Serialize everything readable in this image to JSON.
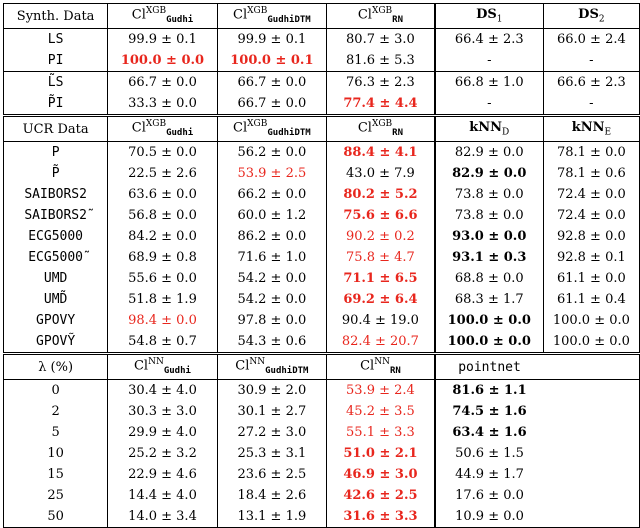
{
  "sections": [
    {
      "header": [
        "Synth. Data",
        "Cl^XGB_Gudhi",
        "Cl^XGB_GudhiDTM",
        "Cl^XGB_RN",
        "DS_1",
        "DS_2"
      ],
      "header_head": [
        "Synth. Data",
        "Cl",
        "Cl",
        "Cl",
        "DS",
        "DS"
      ],
      "header_sup": [
        "",
        "XGB",
        "XGB",
        "XGB",
        "",
        ""
      ],
      "header_sub": [
        "",
        "Gudhi",
        "GudhiDTM",
        "RN",
        "1",
        "2"
      ],
      "rows": [
        [
          "LS",
          "99.9 ± 0.1",
          "99.9 ± 0.1",
          "80.7 ± 3.0",
          "66.4 ± 2.3",
          "66.0 ± 2.4"
        ],
        [
          "PI",
          "100.0 ± 0.0",
          "100.0 ± 0.1",
          "81.6 ± 5.3",
          "-",
          "-"
        ],
        [
          "L̃S",
          "66.7 ± 0.0",
          "66.7 ± 0.0",
          "76.3 ± 2.3",
          "66.8 ± 1.0",
          "66.6 ± 2.3"
        ],
        [
          "P̃I",
          "33.3 ± 0.0",
          "66.7 ± 0.0",
          "77.4 ± 4.4",
          "-",
          "-"
        ]
      ]
    },
    {
      "header": [
        "UCR Data",
        "Cl^XGB_Gudhi",
        "Cl^XGB_GudhiDTM",
        "Cl^XGB_RN",
        "kNN_D",
        "kNN_E"
      ],
      "header_head": [
        "UCR Data",
        "Cl",
        "Cl",
        "Cl",
        "kNN",
        "kNN"
      ],
      "header_sup": [
        "",
        "XGB",
        "XGB",
        "XGB",
        "",
        ""
      ],
      "header_sub": [
        "",
        "Gudhi",
        "GudhiDTM",
        "RN",
        "D",
        "E"
      ],
      "rows": [
        [
          "P",
          "70.5 ± 0.0",
          "56.2 ± 0.0",
          "88.4 ± 4.1",
          "82.9 ± 0.0",
          "78.1 ± 0.0"
        ],
        [
          "P̃",
          "22.5 ± 2.6",
          "53.9 ± 2.5",
          "43.0 ± 7.9",
          "82.9 ± 0.0",
          "78.1 ± 0.6"
        ],
        [
          "SAIBORS2",
          "63.6 ± 0.0",
          "66.2 ± 0.0",
          "80.2 ± 5.2",
          "73.8 ± 0.0",
          "72.4 ± 0.0"
        ],
        [
          "SAIBORS2̃",
          "56.8 ± 0.0",
          "60.0 ± 1.2",
          "75.6 ± 6.6",
          "73.8 ± 0.0",
          "72.4 ± 0.0"
        ],
        [
          "ECG5000",
          "84.2 ± 0.0",
          "86.2 ± 0.0",
          "90.2 ± 0.2",
          "93.0 ± 0.0",
          "92.8 ± 0.0"
        ],
        [
          "ECG5000̃",
          "68.9 ± 0.8",
          "71.6 ± 1.0",
          "75.8 ± 4.7",
          "93.1 ± 0.3",
          "92.8 ± 0.1"
        ],
        [
          "UMD",
          "55.6 ± 0.0",
          "54.2 ± 0.0",
          "71.1 ± 6.5",
          "68.8 ± 0.0",
          "61.1 ± 0.0"
        ],
        [
          "UMD̃",
          "51.8 ± 1.9",
          "54.2 ± 0.0",
          "69.2 ± 6.4",
          "68.3 ± 1.7",
          "61.1 ± 0.4"
        ],
        [
          "GPOVY",
          "98.4 ± 0.0",
          "97.8 ± 0.0",
          "90.4 ± 19.0",
          "100.0 ± 0.0",
          "100.0 ± 0.0"
        ],
        [
          "GPOVỸ",
          "54.8 ± 0.7",
          "54.3 ± 0.6",
          "82.4 ± 20.7",
          "100.0 ± 0.0",
          "100.0 ± 0.0"
        ]
      ]
    },
    {
      "header": [
        "λ (%)",
        "Cl^NN_Gudhi",
        "Cl^NN_GudhiDTM",
        "Cl^NN_RN",
        "pointnet",
        ""
      ],
      "header_head": [
        "λ (%)",
        "Cl",
        "Cl",
        "Cl",
        "pointnet",
        ""
      ],
      "header_sup": [
        "",
        "NN",
        "NN",
        "NN",
        "",
        ""
      ],
      "header_sub": [
        "",
        "Gudhi",
        "GudhiDTM",
        "RN",
        "",
        ""
      ],
      "rows": [
        [
          "0",
          "30.4 ± 4.0",
          "30.9 ± 2.0",
          "53.9 ± 2.4",
          "81.6 ± 1.1",
          ""
        ],
        [
          "2",
          "30.3 ± 3.0",
          "30.1 ± 2.7",
          "45.2 ± 3.5",
          "74.5 ± 1.6",
          ""
        ],
        [
          "5",
          "29.9 ± 4.0",
          "27.2 ± 3.0",
          "55.1 ± 3.3",
          "63.4 ± 1.6",
          ""
        ],
        [
          "10",
          "25.2 ± 3.2",
          "25.3 ± 3.1",
          "51.0 ± 2.1",
          "50.6 ± 1.5",
          ""
        ],
        [
          "15",
          "22.9 ± 4.6",
          "23.6 ± 2.5",
          "46.9 ± 3.0",
          "44.9 ± 1.7",
          ""
        ],
        [
          "25",
          "14.4 ± 4.0",
          "18.4 ± 2.6",
          "42.6 ± 2.5",
          "17.6 ± 0.0",
          ""
        ],
        [
          "50",
          "14.0 ± 3.4",
          "13.1 ± 1.9",
          "31.6 ± 3.3",
          "10.9 ± 0.0",
          ""
        ]
      ]
    }
  ],
  "style": {
    "red_color": "#e8261d",
    "red_cells": [
      [
        0,
        1,
        1
      ],
      [
        0,
        1,
        2
      ],
      [
        0,
        3,
        3
      ],
      [
        1,
        0,
        3
      ],
      [
        1,
        1,
        2
      ],
      [
        1,
        2,
        3
      ],
      [
        1,
        3,
        3
      ],
      [
        1,
        4,
        3
      ],
      [
        1,
        5,
        3
      ],
      [
        1,
        6,
        3
      ],
      [
        1,
        7,
        3
      ],
      [
        1,
        8,
        1
      ],
      [
        1,
        9,
        3
      ],
      [
        2,
        0,
        3
      ],
      [
        2,
        1,
        3
      ],
      [
        2,
        2,
        3
      ],
      [
        2,
        3,
        3
      ],
      [
        2,
        4,
        3
      ],
      [
        2,
        5,
        3
      ],
      [
        2,
        6,
        3
      ]
    ],
    "bold_cells": [
      [
        0,
        1,
        1
      ],
      [
        0,
        1,
        2
      ],
      [
        0,
        3,
        3
      ],
      [
        1,
        0,
        3
      ],
      [
        1,
        2,
        3
      ],
      [
        1,
        3,
        3
      ],
      [
        1,
        6,
        3
      ],
      [
        1,
        7,
        3
      ],
      [
        1,
        1,
        4
      ],
      [
        1,
        4,
        4
      ],
      [
        1,
        5,
        4
      ],
      [
        1,
        8,
        4
      ],
      [
        1,
        9,
        4
      ],
      [
        2,
        3,
        3
      ],
      [
        2,
        4,
        3
      ],
      [
        2,
        5,
        3
      ],
      [
        2,
        6,
        3
      ],
      [
        2,
        0,
        4
      ],
      [
        2,
        1,
        4
      ],
      [
        2,
        2,
        4
      ]
    ],
    "mono_label_sections": [
      0,
      1
    ]
  }
}
